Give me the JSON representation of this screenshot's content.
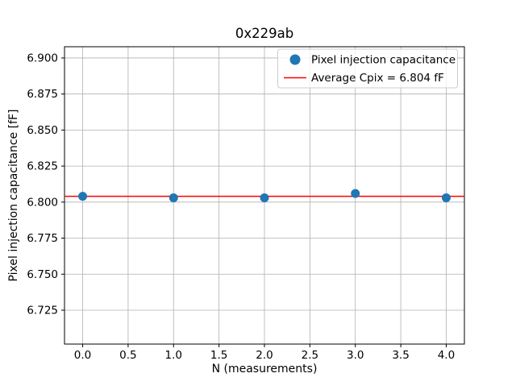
{
  "figure": {
    "background": "#ffffff"
  },
  "chart_data": {
    "type": "scatter",
    "title": "0x229ab",
    "xlabel": "N (measurements)",
    "ylabel": "Pixel injection capacitance [fF]",
    "x": [
      0,
      1,
      2,
      3,
      4
    ],
    "y": [
      6.804,
      6.803,
      6.803,
      6.806,
      6.803
    ],
    "series_label": "Pixel injection capacitance",
    "marker_color": "#1f77b4",
    "average_line": {
      "value": 6.804,
      "label": "Average Cpix = 6.804 fF",
      "color": "#ff0000"
    },
    "xlim": [
      -0.2,
      4.2
    ],
    "ylim": [
      6.7015,
      6.9078
    ],
    "xticks": [
      0.0,
      0.5,
      1.0,
      1.5,
      2.0,
      2.5,
      3.0,
      3.5,
      4.0
    ],
    "xtick_labels": [
      "0.0",
      "0.5",
      "1.0",
      "1.5",
      "2.0",
      "2.5",
      "3.0",
      "3.5",
      "4.0"
    ],
    "yticks": [
      6.725,
      6.75,
      6.775,
      6.8,
      6.825,
      6.85,
      6.875,
      6.9
    ],
    "ytick_labels": [
      "6.725",
      "6.750",
      "6.775",
      "6.800",
      "6.825",
      "6.850",
      "6.875",
      "6.900"
    ],
    "grid": true,
    "grid_color": "#b0b0b0",
    "legend_position": "upper right",
    "legend": [
      {
        "label": "Pixel injection capacitance",
        "marker": "circle",
        "color": "#1f77b4"
      },
      {
        "label": "Average Cpix = 6.804 fF",
        "marker": "line",
        "color": "#ff0000"
      }
    ]
  }
}
